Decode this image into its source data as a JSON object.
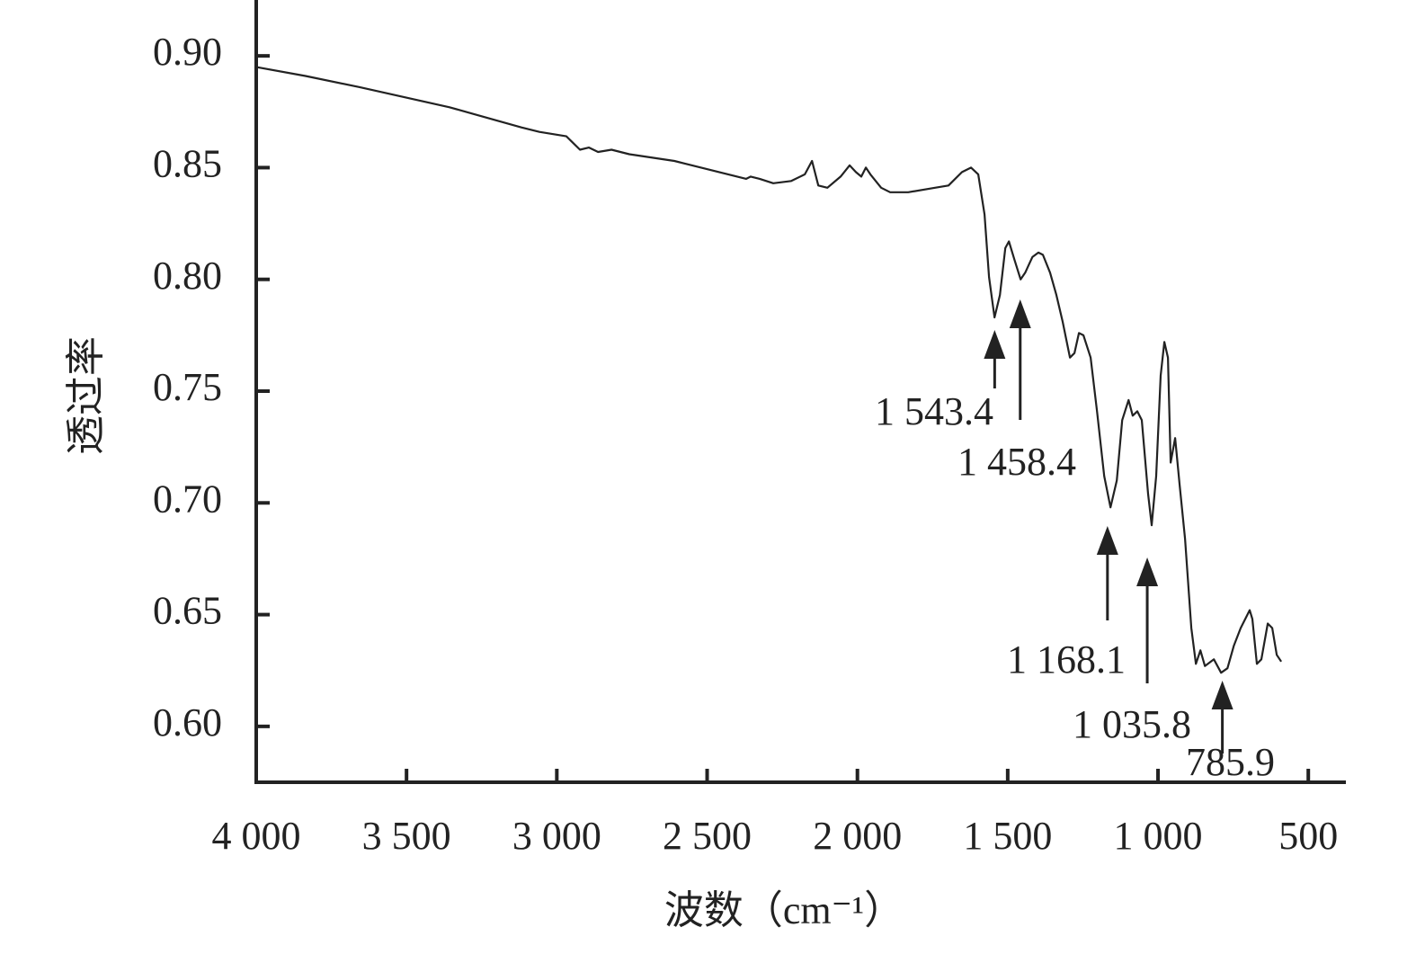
{
  "chart_data": {
    "type": "line",
    "x_label": "波数（cm⁻¹）",
    "y_label": "透过率",
    "color": "#222222",
    "xlim": [
      4000,
      375
    ],
    "ylim": [
      0.575,
      0.925
    ],
    "xticks": [
      {
        "value": 4000,
        "label": "4 000"
      },
      {
        "value": 3500,
        "label": "3 500"
      },
      {
        "value": 3000,
        "label": "3 000"
      },
      {
        "value": 2500,
        "label": "2 500"
      },
      {
        "value": 2000,
        "label": "2 000"
      },
      {
        "value": 1500,
        "label": "1 500"
      },
      {
        "value": 1000,
        "label": "1 000"
      },
      500
    ],
    "yticks": [
      {
        "value": 0.6,
        "label": "0.60"
      },
      0.65,
      {
        "value": 0.7,
        "label": "0.70"
      },
      0.75,
      {
        "value": 0.8,
        "label": "0.80"
      },
      0.85,
      {
        "value": 0.9,
        "label": "0.90"
      }
    ],
    "x": [
      4000,
      3836,
      3656,
      3357,
      3118,
      3058,
      2968,
      2923,
      2893,
      2863,
      2818,
      2759,
      2609,
      2460,
      2370,
      2355,
      2325,
      2280,
      2220,
      2175,
      2151,
      2130,
      2100,
      2056,
      2026,
      2005,
      1987,
      1972,
      1957,
      1921,
      1891,
      1831,
      1742,
      1697,
      1652,
      1622,
      1598,
      1577,
      1562,
      1544,
      1526,
      1508,
      1496,
      1478,
      1457,
      1442,
      1418,
      1398,
      1383,
      1359,
      1338,
      1317,
      1293,
      1278,
      1263,
      1248,
      1224,
      1203,
      1179,
      1158,
      1137,
      1119,
      1098,
      1084,
      1069,
      1054,
      1033,
      1021,
      1006,
      991,
      979,
      967,
      958,
      943,
      928,
      910,
      889,
      874,
      859,
      844,
      814,
      790,
      769,
      748,
      725,
      695,
      686,
      671,
      656,
      635,
      620,
      605,
      590
    ],
    "values": [
      0.895,
      0.891,
      0.886,
      0.877,
      0.868,
      0.866,
      0.864,
      0.858,
      0.859,
      0.857,
      0.858,
      0.856,
      0.853,
      0.848,
      0.845,
      0.846,
      0.845,
      0.843,
      0.844,
      0.847,
      0.853,
      0.842,
      0.841,
      0.846,
      0.851,
      0.848,
      0.846,
      0.85,
      0.847,
      0.841,
      0.839,
      0.839,
      0.841,
      0.842,
      0.848,
      0.85,
      0.847,
      0.829,
      0.801,
      0.783,
      0.793,
      0.814,
      0.817,
      0.809,
      0.8,
      0.803,
      0.81,
      0.812,
      0.811,
      0.803,
      0.793,
      0.781,
      0.765,
      0.767,
      0.776,
      0.775,
      0.765,
      0.741,
      0.712,
      0.698,
      0.71,
      0.737,
      0.746,
      0.739,
      0.741,
      0.737,
      0.704,
      0.69,
      0.712,
      0.757,
      0.772,
      0.765,
      0.718,
      0.729,
      0.708,
      0.684,
      0.644,
      0.628,
      0.634,
      0.627,
      0.63,
      0.624,
      0.626,
      0.636,
      0.644,
      0.652,
      0.648,
      0.628,
      0.63,
      0.646,
      0.644,
      0.632,
      0.629
    ],
    "annotations": [
      {
        "x": 1543.4,
        "label": "1 543.4"
      },
      {
        "x": 1458.4,
        "label": "1 458.4"
      },
      {
        "x": 1168.1,
        "label": "1 168.1"
      },
      {
        "x": 1035.8,
        "label": "1 035.8"
      },
      {
        "x": 785.9,
        "label": "785.9"
      }
    ]
  }
}
